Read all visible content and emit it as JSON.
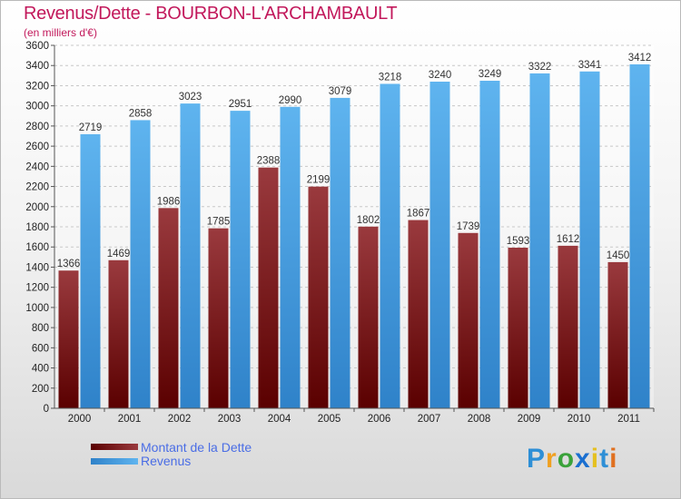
{
  "header": {
    "title": "Revenus/Dette - BOURBON-L'ARCHAMBAULT",
    "subtitle": "(en milliers d'€)"
  },
  "logo": {
    "text": "Proxiti"
  },
  "chart_data": {
    "type": "bar",
    "categories": [
      "2000",
      "2001",
      "2002",
      "2003",
      "2004",
      "2005",
      "2006",
      "2007",
      "2008",
      "2009",
      "2010",
      "2011"
    ],
    "series": [
      {
        "name": "Montant de la Dette",
        "color": "#7a0f12",
        "values": [
          1366,
          1469,
          1986,
          1785,
          2388,
          2199,
          1802,
          1867,
          1739,
          1593,
          1612,
          1450
        ],
        "labels": [
          "1366",
          "1469",
          "1986",
          "1785",
          "2388",
          "2199",
          "1802",
          "1867",
          "1739",
          "1593",
          "1612",
          "1450"
        ]
      },
      {
        "name": "Revenus",
        "color": "#3a95de",
        "values": [
          2719,
          2858,
          3023,
          2951,
          2990,
          3079,
          3218,
          3240,
          3249,
          3322,
          3341,
          3412
        ],
        "labels": [
          "2719",
          "2858",
          "3023",
          "2951",
          "2990",
          "3079",
          "3218",
          "3240",
          "3249",
          "3322",
          "3341",
          "3412"
        ]
      }
    ],
    "yticks": [
      "0",
      "200",
      "400",
      "600",
      "800",
      "1000",
      "1200",
      "1400",
      "1600",
      "1800",
      "2000",
      "2200",
      "2400",
      "2600",
      "2800",
      "3000",
      "3200",
      "3400",
      "3600"
    ],
    "ylim": [
      0,
      3600
    ],
    "grid": true,
    "legend_position": "bottom-left"
  }
}
